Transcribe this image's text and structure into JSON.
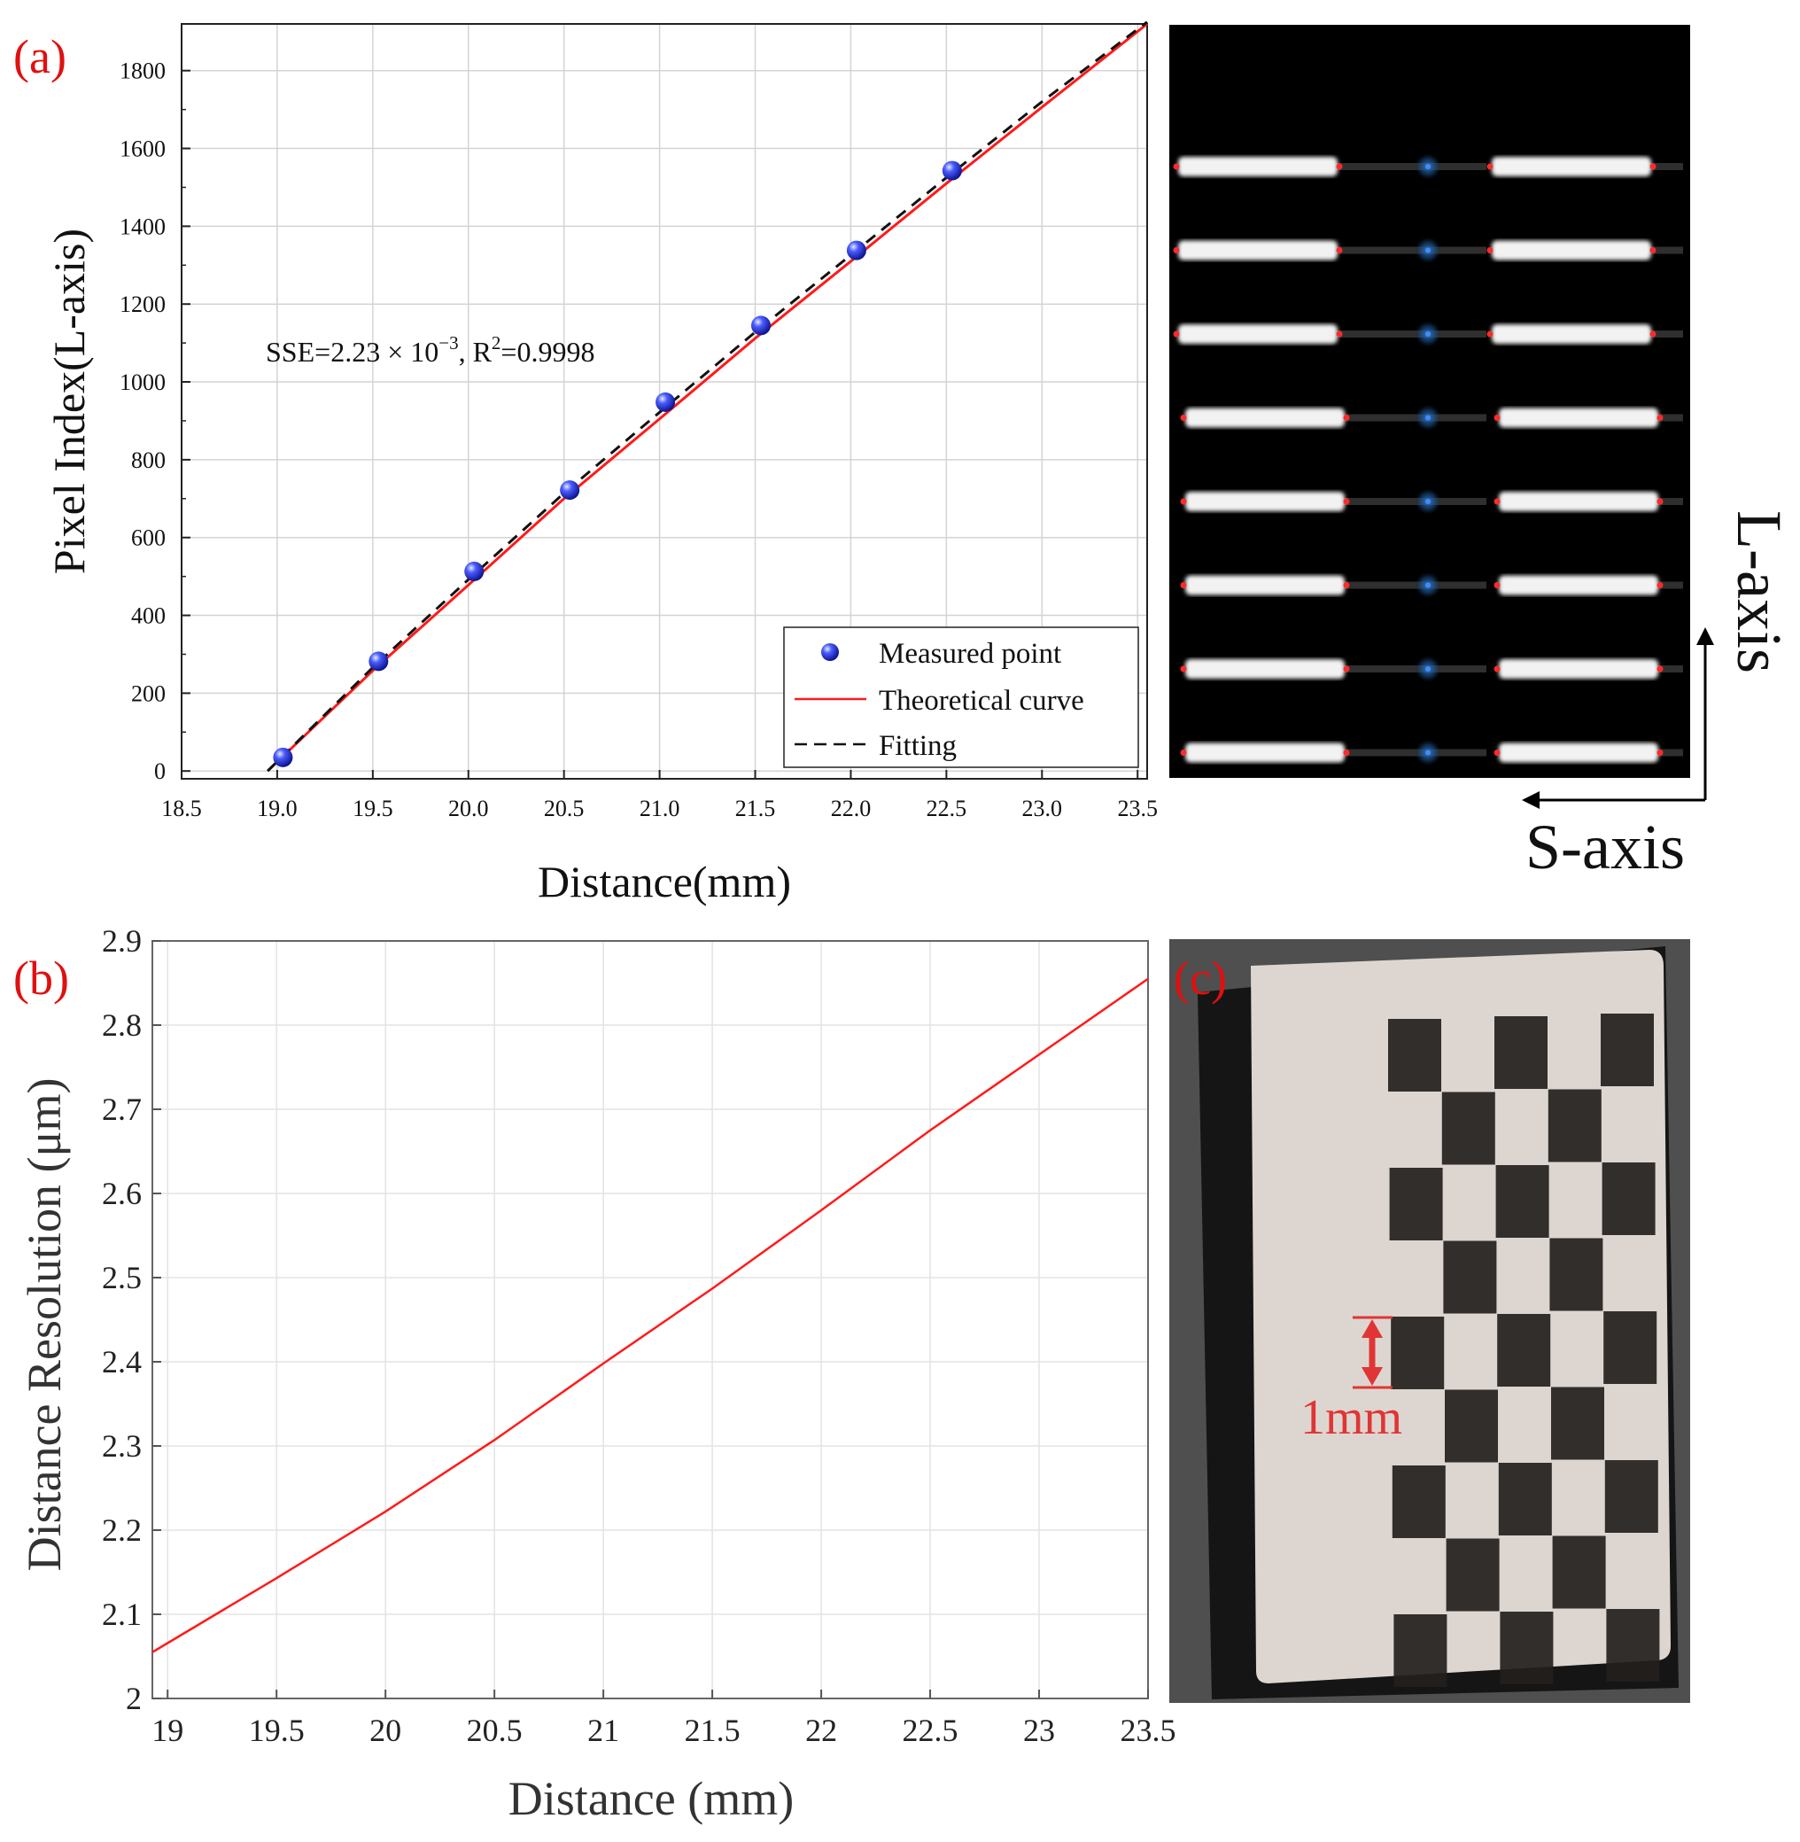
{
  "panel_labels": {
    "a": "(a)",
    "b": "(b)",
    "c": "(c)"
  },
  "chart_data": [
    {
      "id": "a",
      "type": "line",
      "xlabel": "Distance(mm)",
      "ylabel": "Pixel Index(L-axis)",
      "xlim": [
        18.5,
        23.55
      ],
      "ylim": [
        -20,
        1920
      ],
      "xticks": [
        "18.5",
        "19.0",
        "19.5",
        "20.0",
        "20.5",
        "21.0",
        "21.5",
        "22.0",
        "22.5",
        "23.0",
        "23.5"
      ],
      "yticks": [
        "0",
        "200",
        "400",
        "600",
        "800",
        "1000",
        "1200",
        "1400",
        "1600",
        "1800"
      ],
      "grid": true,
      "legend_position": "bottom-right",
      "annotation": {
        "prefix": "SSE=2.23 × 10",
        "exp": "−3",
        "mid": ", R",
        "sup": "2",
        "suffix": "=0.9998"
      },
      "series": [
        {
          "name": "Measured point",
          "style": "scatter",
          "color": "#1a2bd6",
          "x": [
            19.03,
            19.53,
            20.03,
            20.53,
            21.03,
            21.53,
            22.03,
            22.53
          ],
          "y": [
            35,
            282,
            513,
            722,
            948,
            1145,
            1338,
            1543
          ]
        },
        {
          "name": "Theoretical curve",
          "style": "line",
          "color": "#ff1a1a",
          "x": [
            18.95,
            19.5,
            20.0,
            20.5,
            21.0,
            21.5,
            22.0,
            22.5,
            23.0,
            23.55
          ],
          "y": [
            0,
            258,
            478,
            700,
            905,
            1112,
            1310,
            1510,
            1706,
            1920
          ]
        },
        {
          "name": "Fitting",
          "style": "dashed",
          "color": "#111111",
          "x": [
            18.95,
            19.5,
            20.0,
            20.5,
            21.0,
            21.5,
            22.0,
            22.5,
            23.0,
            23.55
          ],
          "y": [
            0,
            266,
            492,
            714,
            922,
            1128,
            1326,
            1525,
            1720,
            1925
          ]
        }
      ]
    },
    {
      "id": "b",
      "type": "line",
      "xlabel": "Distance (mm)",
      "ylabel": "Distance Resolution (μm)",
      "xlim": [
        18.93,
        23.5
      ],
      "ylim": [
        2.0,
        2.9
      ],
      "xticks": [
        "19",
        "19.5",
        "20",
        "20.5",
        "21",
        "21.5",
        "22",
        "22.5",
        "23",
        "23.5"
      ],
      "yticks": [
        "2",
        "2.1",
        "2.2",
        "2.3",
        "2.4",
        "2.5",
        "2.6",
        "2.7",
        "2.8",
        "2.9"
      ],
      "grid": true,
      "series": [
        {
          "style": "line",
          "color": "#ff1a1a",
          "x": [
            18.93,
            19.5,
            20.0,
            20.5,
            21.0,
            21.5,
            22.0,
            22.5,
            23.0,
            23.5
          ],
          "y": [
            2.055,
            2.143,
            2.222,
            2.307,
            2.398,
            2.487,
            2.58,
            2.675,
            2.765,
            2.855
          ]
        }
      ]
    }
  ],
  "image_top_right": {
    "row_count": 8,
    "l_axis_label": "L-axis",
    "s_axis_label": "S-axis"
  },
  "image_bottom_right": {
    "scale_label": "1mm"
  },
  "colors": {
    "panel_label": "#e01010",
    "measured": "#1a2bd6",
    "theoretical": "#ff1a1a",
    "fitting": "#111111",
    "scale_marker": "#e03535"
  }
}
